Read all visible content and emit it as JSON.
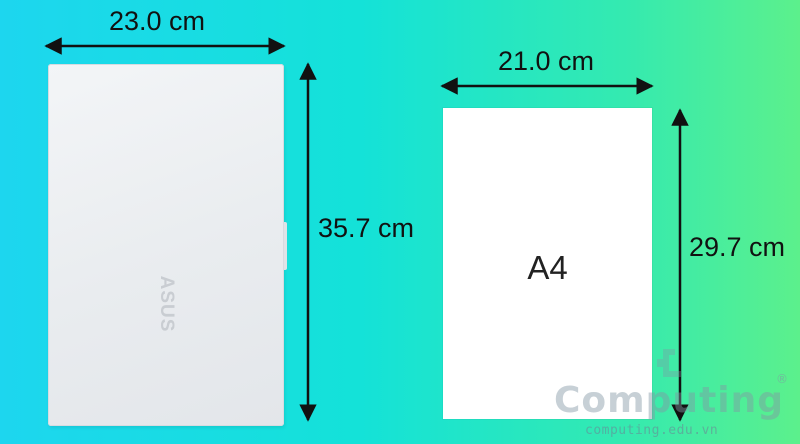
{
  "laptop": {
    "width_label": "23.0 cm",
    "height_label": "35.7 cm",
    "logo_text": "ASUS"
  },
  "paper": {
    "label": "A4",
    "width_label": "21.0 cm",
    "height_label": "29.7 cm"
  },
  "watermark": {
    "brand": "Computing",
    "registered": "®",
    "url": "computing.edu.vn"
  },
  "colors": {
    "background_left": "#1dd6ef",
    "background_right": "#5cf08c",
    "arrow": "#111111"
  }
}
